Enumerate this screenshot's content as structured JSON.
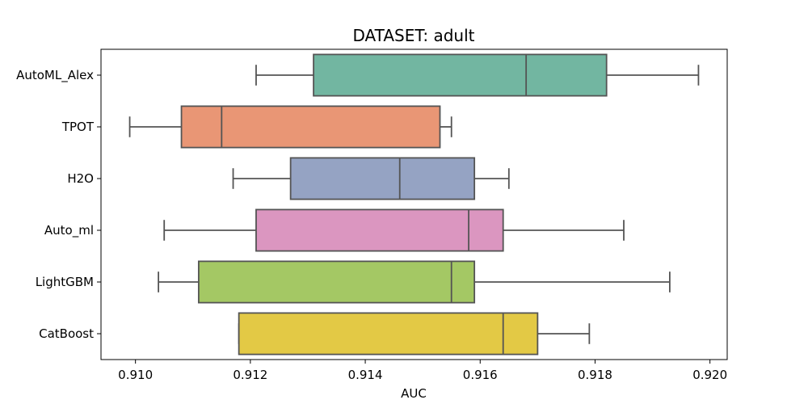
{
  "chart_data": {
    "type": "boxplot",
    "orientation": "horizontal",
    "title": "DATASET: adult",
    "xlabel": "AUC",
    "ylabel": "",
    "xlim": [
      0.9094,
      0.9203
    ],
    "xticks": [
      "0.910",
      "0.912",
      "0.914",
      "0.916",
      "0.918",
      "0.920"
    ],
    "grid": false,
    "series": [
      {
        "name": "AutoML_Alex",
        "whisker_low": 0.9121,
        "q1": 0.9131,
        "median": 0.9168,
        "q3": 0.9182,
        "whisker_high": 0.9198,
        "color": "#72b6a1"
      },
      {
        "name": "TPOT",
        "whisker_low": 0.9099,
        "q1": 0.9108,
        "median": 0.9115,
        "q3": 0.9153,
        "whisker_high": 0.9155,
        "color": "#e99675"
      },
      {
        "name": "H2O",
        "whisker_low": 0.9117,
        "q1": 0.9127,
        "median": 0.9146,
        "q3": 0.9159,
        "whisker_high": 0.9165,
        "color": "#95a3c3"
      },
      {
        "name": "Auto_ml",
        "whisker_low": 0.9105,
        "q1": 0.9121,
        "median": 0.9158,
        "q3": 0.9164,
        "whisker_high": 0.9185,
        "color": "#db96c0"
      },
      {
        "name": "LightGBM",
        "whisker_low": 0.9104,
        "q1": 0.9111,
        "median": 0.9155,
        "q3": 0.9159,
        "whisker_high": 0.9193,
        "color": "#a4c864"
      },
      {
        "name": "CatBoost",
        "whisker_low": 0.9118,
        "q1": 0.9118,
        "median": 0.9164,
        "q3": 0.917,
        "whisker_high": 0.9179,
        "color": "#e3c945"
      }
    ]
  }
}
